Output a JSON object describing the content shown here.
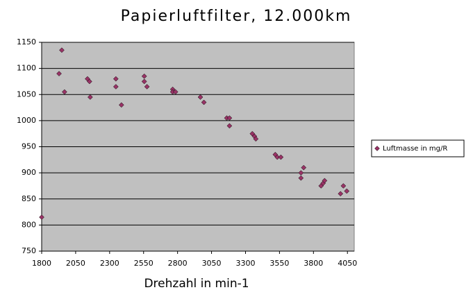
{
  "chart_data": {
    "type": "scatter",
    "title": "Papierluftfilter, 12.000km",
    "x_label": "Drehzahl in min-1",
    "xlim": [
      1800,
      4100
    ],
    "ylim": [
      750,
      1150
    ],
    "xticks": [
      1800,
      2050,
      2300,
      2550,
      2800,
      3050,
      3300,
      3550,
      3800,
      4050
    ],
    "yticks": [
      750,
      800,
      850,
      900,
      950,
      1000,
      1050,
      1100,
      1150
    ],
    "grid": true,
    "legend": "right",
    "series": [
      {
        "name": "Luftmasse in  mg/R",
        "color": "#993366",
        "x": [
          1800,
          1948,
          1928,
          1968,
          2137,
          2152,
          2157,
          2346,
          2346,
          2387,
          2555,
          2555,
          2575,
          2764,
          2764,
          2785,
          2968,
          2994,
          3162,
          3182,
          3182,
          3350,
          3366,
          3376,
          3519,
          3534,
          3560,
          3708,
          3708,
          3728,
          3856,
          3871,
          3882,
          3999,
          4020,
          4045
        ],
        "values": [
          815,
          1135,
          1090,
          1055,
          1080,
          1075,
          1045,
          1080,
          1065,
          1030,
          1085,
          1075,
          1065,
          1060,
          1055,
          1055,
          1045,
          1035,
          1005,
          1005,
          990,
          975,
          970,
          965,
          935,
          930,
          930,
          900,
          890,
          910,
          875,
          880,
          885,
          860,
          875,
          865
        ]
      }
    ]
  }
}
